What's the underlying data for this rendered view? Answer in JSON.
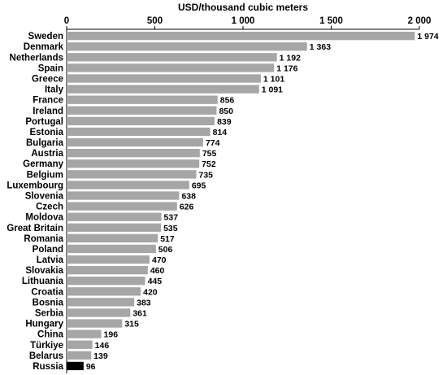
{
  "chart_data": {
    "type": "bar",
    "orientation": "horizontal",
    "title": "USD/thousand cubic meters",
    "xlim": [
      0,
      2000
    ],
    "x_ticks": [
      0,
      500,
      1000,
      1500,
      2000
    ],
    "x_tick_labels": [
      "0",
      "500",
      "1 000",
      "1 500",
      "2 000"
    ],
    "axis_position": "top",
    "grid": false,
    "categories": [
      "Sweden",
      "Denmark",
      "Netherlands",
      "Spain",
      "Greece",
      "Italy",
      "France",
      "Ireland",
      "Portugal",
      "Estonia",
      "Bulgaria",
      "Austria",
      "Germany",
      "Belgium",
      "Luxembourg",
      "Slovenia",
      "Czech",
      "Moldova",
      "Great Britain",
      "Romania",
      "Poland",
      "Latvia",
      "Slovakia",
      "Lithuania",
      "Croatia",
      "Bosnia",
      "Serbia",
      "Hungary",
      "China",
      "Türkiye",
      "Belarus",
      "Russia"
    ],
    "values": [
      1974,
      1363,
      1192,
      1176,
      1101,
      1091,
      856,
      850,
      839,
      814,
      774,
      755,
      752,
      735,
      695,
      638,
      626,
      537,
      535,
      517,
      506,
      470,
      460,
      445,
      420,
      383,
      361,
      315,
      196,
      146,
      139,
      96
    ],
    "value_labels": [
      "1 974",
      "1 363",
      "1 192",
      "1 176",
      "1 101",
      "1 091",
      "856",
      "850",
      "839",
      "814",
      "774",
      "755",
      "752",
      "735",
      "695",
      "638",
      "626",
      "537",
      "535",
      "517",
      "506",
      "470",
      "460",
      "445",
      "420",
      "383",
      "361",
      "315",
      "196",
      "146",
      "139",
      "96"
    ],
    "colors": {
      "bar": "#a6a6a6",
      "highlight": "#000000",
      "axis": "#000000"
    },
    "highlight_category": "Russia"
  }
}
